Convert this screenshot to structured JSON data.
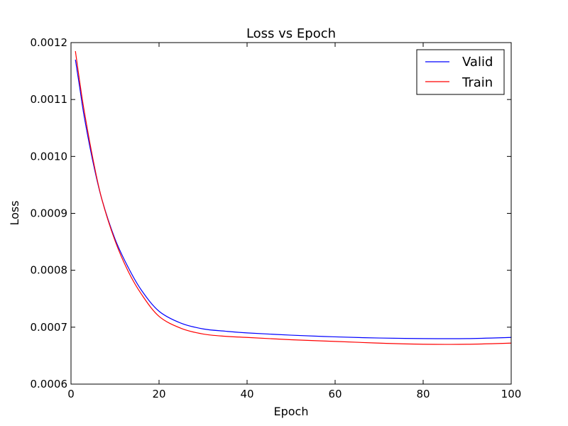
{
  "chart_data": {
    "type": "line",
    "title": "Loss vs Epoch",
    "xlabel": "Epoch",
    "ylabel": "Loss",
    "xlim": [
      0,
      100
    ],
    "ylim": [
      0.0006,
      0.0012
    ],
    "x_ticks": [
      0,
      20,
      40,
      60,
      80,
      100
    ],
    "x_tick_labels": [
      "0",
      "20",
      "40",
      "60",
      "80",
      "100"
    ],
    "y_ticks": [
      0.0006,
      0.0007,
      0.0008,
      0.0009,
      0.001,
      0.0011,
      0.0012
    ],
    "y_tick_labels": [
      "0.0006",
      "0.0007",
      "0.0008",
      "0.0009",
      "0.0010",
      "0.0011",
      "0.0012"
    ],
    "grid": false,
    "legend_position": "top-right",
    "x": [
      1,
      2,
      3,
      5,
      7,
      10,
      13,
      16,
      20,
      25,
      30,
      35,
      40,
      50,
      60,
      70,
      80,
      90,
      100
    ],
    "series": [
      {
        "name": "Valid",
        "color": "#0000ff",
        "values": [
          0.00117,
          0.00112,
          0.00107,
          0.00099,
          0.000925,
          0.000855,
          0.000805,
          0.000765,
          0.000728,
          0.000707,
          0.000697,
          0.000693,
          0.00069,
          0.000686,
          0.000683,
          0.000681,
          0.00068,
          0.00068,
          0.000682
        ]
      },
      {
        "name": "Train",
        "color": "#ff0000",
        "values": [
          0.001185,
          0.00113,
          0.00108,
          0.000995,
          0.000925,
          0.000852,
          0.000798,
          0.000758,
          0.000719,
          0.000698,
          0.000688,
          0.000684,
          0.000682,
          0.000678,
          0.000675,
          0.000672,
          0.00067,
          0.00067,
          0.000672
        ]
      }
    ]
  }
}
